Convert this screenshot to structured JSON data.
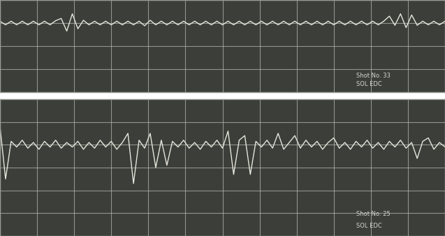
{
  "chart_data": [
    {
      "type": "line",
      "color": "#e6e6dc",
      "grid": true,
      "tick_labels": false,
      "xlim": [
        0,
        12
      ],
      "ylim": [
        -3,
        1
      ],
      "xticks": [
        0,
        1,
        2,
        3,
        4,
        5,
        6,
        7,
        8,
        9,
        10,
        11,
        12
      ],
      "yticks": [
        -3,
        -2,
        -1,
        0,
        1
      ],
      "annotations": [
        "Shot No. 33",
        "SOL EDC"
      ],
      "x": [
        0,
        0.15,
        0.3,
        0.45,
        0.6,
        0.75,
        0.9,
        1.05,
        1.2,
        1.35,
        1.5,
        1.65,
        1.8,
        1.95,
        2.1,
        2.25,
        2.4,
        2.55,
        2.7,
        2.85,
        3,
        3.15,
        3.3,
        3.45,
        3.6,
        3.75,
        3.9,
        4.05,
        4.2,
        4.35,
        4.5,
        4.65,
        4.8,
        4.95,
        5.1,
        5.25,
        5.4,
        5.55,
        5.7,
        5.85,
        6,
        6.15,
        6.3,
        6.45,
        6.6,
        6.75,
        6.9,
        7.05,
        7.2,
        7.35,
        7.5,
        7.65,
        7.8,
        7.95,
        8.1,
        8.25,
        8.4,
        8.55,
        8.7,
        8.85,
        9,
        9.15,
        9.3,
        9.45,
        9.6,
        9.75,
        9.9,
        10.05,
        10.2,
        10.35,
        10.5,
        10.65,
        10.8,
        10.95,
        11.1,
        11.25,
        11.4,
        11.55,
        11.7,
        11.85,
        12
      ],
      "values": [
        0.08,
        -0.08,
        0.08,
        -0.08,
        0.08,
        -0.08,
        0.08,
        -0.08,
        0.08,
        -0.08,
        0.1,
        0.2,
        -0.35,
        0.4,
        -0.25,
        0.12,
        -0.08,
        0.08,
        -0.08,
        0.08,
        -0.08,
        0.08,
        -0.08,
        0.08,
        -0.08,
        0.08,
        -0.12,
        0.12,
        -0.08,
        0.08,
        -0.08,
        0.08,
        -0.08,
        0.08,
        -0.08,
        0.08,
        -0.08,
        0.08,
        -0.08,
        0.08,
        -0.08,
        0.08,
        -0.08,
        0.08,
        -0.08,
        0.08,
        -0.08,
        0.08,
        -0.08,
        0.08,
        -0.08,
        0.08,
        -0.08,
        0.08,
        -0.08,
        0.08,
        -0.08,
        0.08,
        -0.08,
        0.08,
        -0.08,
        0.08,
        -0.08,
        0.08,
        -0.08,
        0.08,
        -0.08,
        0.08,
        -0.08,
        0.08,
        0.3,
        -0.1,
        0.4,
        -0.2,
        0.35,
        -0.1,
        0.08,
        -0.08,
        0.08,
        -0.08,
        0.08
      ]
    },
    {
      "type": "line",
      "color": "#e6e6dc",
      "grid": true,
      "tick_labels": false,
      "xlim": [
        0,
        12
      ],
      "ylim": [
        -4,
        2
      ],
      "xticks": [
        0,
        1,
        2,
        3,
        4,
        5,
        6,
        7,
        8,
        9,
        10,
        11,
        12
      ],
      "yticks": [
        -4,
        -3,
        -2,
        -1,
        0,
        1,
        2
      ],
      "annotations": [
        "Shot No. 25",
        "SOL EDC"
      ],
      "x": [
        0,
        0.15,
        0.3,
        0.45,
        0.6,
        0.75,
        0.9,
        1.05,
        1.2,
        1.35,
        1.5,
        1.65,
        1.8,
        1.95,
        2.1,
        2.25,
        2.4,
        2.55,
        2.7,
        2.85,
        3,
        3.15,
        3.3,
        3.45,
        3.6,
        3.75,
        3.9,
        4.05,
        4.2,
        4.35,
        4.5,
        4.65,
        4.8,
        4.95,
        5.1,
        5.25,
        5.4,
        5.55,
        5.7,
        5.85,
        6,
        6.15,
        6.3,
        6.45,
        6.6,
        6.75,
        6.9,
        7.05,
        7.2,
        7.35,
        7.5,
        7.65,
        7.8,
        7.95,
        8.1,
        8.25,
        8.4,
        8.55,
        8.7,
        8.85,
        9,
        9.15,
        9.3,
        9.45,
        9.6,
        9.75,
        9.9,
        10.05,
        10.2,
        10.35,
        10.5,
        10.65,
        10.8,
        10.95,
        11.1,
        11.25,
        11.4,
        11.55,
        11.7,
        11.85,
        12
      ],
      "values": [
        0.8,
        -1.5,
        0.15,
        -0.1,
        0.2,
        -0.15,
        0.1,
        -0.2,
        0.15,
        -0.1,
        0.2,
        -0.15,
        0.1,
        -0.1,
        0.15,
        -0.2,
        0.1,
        -0.15,
        0.2,
        -0.1,
        0.15,
        -0.2,
        0.1,
        0.5,
        -1.7,
        0.2,
        -0.15,
        0.5,
        -1.0,
        0.2,
        -0.9,
        0.15,
        -0.1,
        0.2,
        -0.15,
        0.1,
        -0.2,
        0.15,
        -0.1,
        0.2,
        -0.15,
        0.6,
        -1.3,
        0.2,
        0.4,
        -1.3,
        0.15,
        -0.1,
        0.2,
        -0.15,
        0.5,
        -0.2,
        0.1,
        0.4,
        -0.15,
        0.2,
        -0.1,
        0.15,
        -0.2,
        0.1,
        0.3,
        -0.15,
        0.1,
        -0.2,
        0.15,
        -0.1,
        0.2,
        -0.15,
        0.1,
        -0.2,
        0.15,
        -0.1,
        0.2,
        -0.15,
        0.1,
        -0.6,
        0.15,
        0.3,
        -0.2,
        0.1,
        -0.1
      ]
    }
  ]
}
